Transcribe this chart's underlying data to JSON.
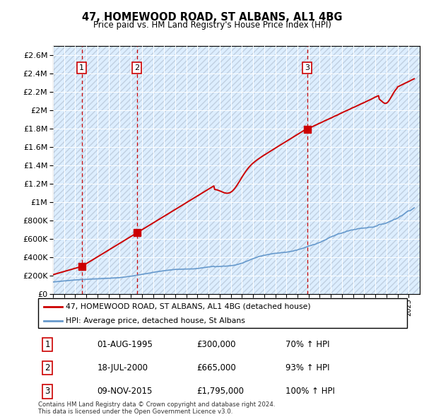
{
  "title": "47, HOMEWOOD ROAD, ST ALBANS, AL1 4BG",
  "subtitle": "Price paid vs. HM Land Registry's House Price Index (HPI)",
  "sale_labels_table": [
    {
      "num": "1",
      "date": "01-AUG-1995",
      "price": "£300,000",
      "pct": "70% ↑ HPI"
    },
    {
      "num": "2",
      "date": "18-JUL-2000",
      "price": "£665,000",
      "pct": "93% ↑ HPI"
    },
    {
      "num": "3",
      "date": "09-NOV-2015",
      "price": "£1,795,000",
      "pct": "100% ↑ HPI"
    }
  ],
  "legend_entries": [
    "47, HOMEWOOD ROAD, ST ALBANS, AL1 4BG (detached house)",
    "HPI: Average price, detached house, St Albans"
  ],
  "footer": "Contains HM Land Registry data © Crown copyright and database right 2024.\nThis data is licensed under the Open Government Licence v3.0.",
  "ylim": [
    0,
    2700000
  ],
  "yticks": [
    0,
    200000,
    400000,
    600000,
    800000,
    1000000,
    1200000,
    1400000,
    1600000,
    1800000,
    2000000,
    2200000,
    2400000,
    2600000
  ],
  "house_color": "#cc0000",
  "hpi_color": "#6699cc",
  "bg_color": "#ddeeff",
  "hatch_color": "#c0cfe0",
  "vline_color": "#cc0000",
  "sale_years": [
    1995.583,
    2000.542,
    2015.861
  ],
  "sale_prices": [
    300000,
    665000,
    1795000
  ],
  "sale_box_labels": [
    "1",
    "2",
    "3"
  ]
}
